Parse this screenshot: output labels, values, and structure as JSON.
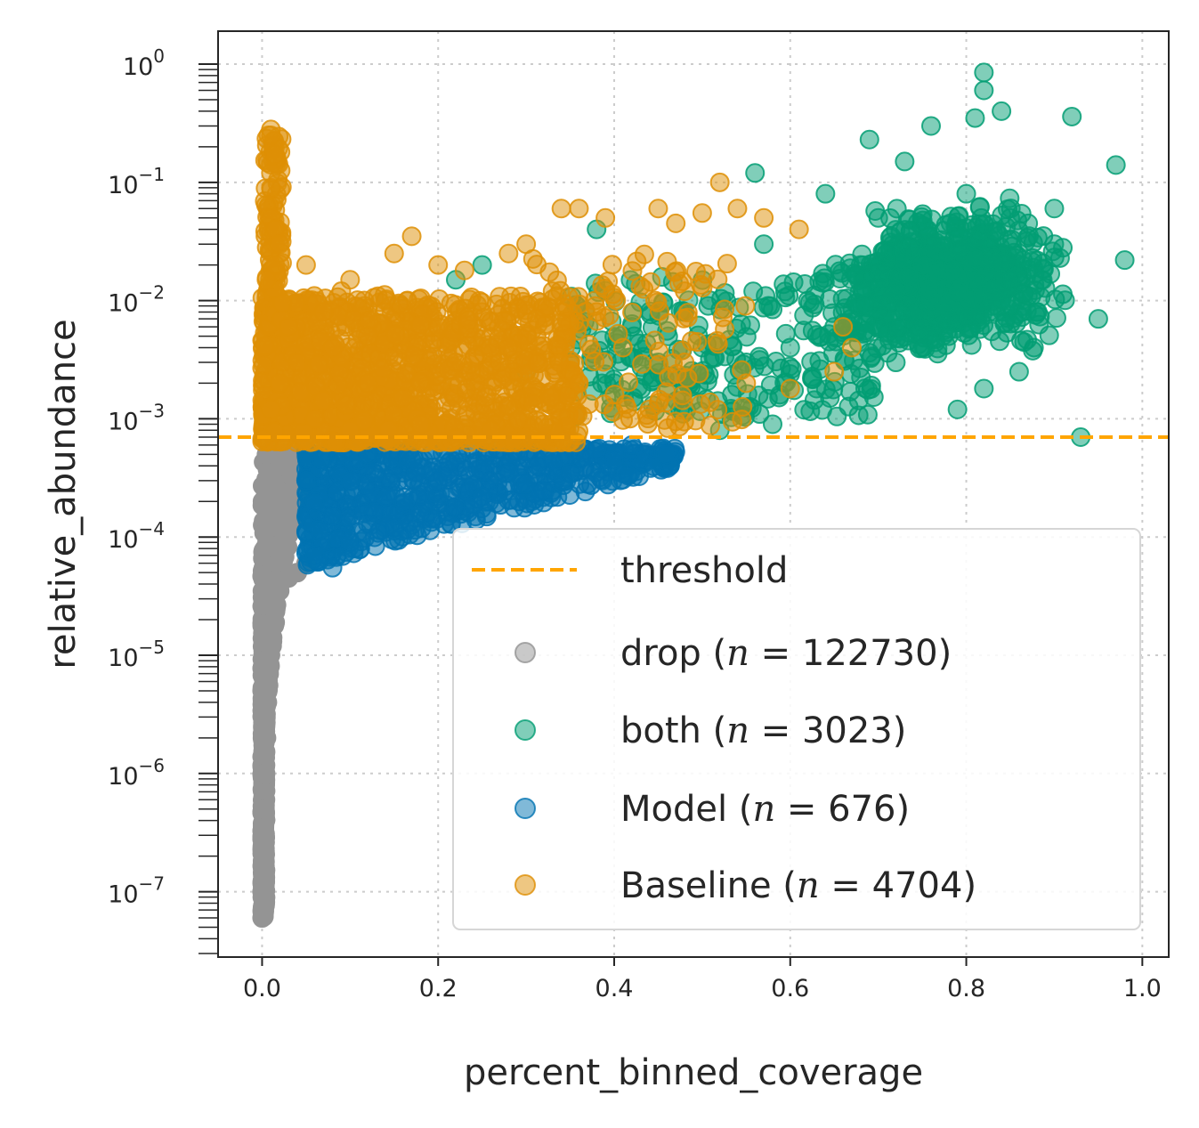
{
  "chart_data": {
    "type": "scatter",
    "title": "",
    "xlabel": "percent_binned_coverage",
    "ylabel": "relative_abundance",
    "xlim": [
      -0.05,
      1.03
    ],
    "ylim": [
      2.8e-08,
      1.9
    ],
    "yscale": "log",
    "grid": true,
    "legend_position": "lower-right",
    "x_ticks": [
      {
        "value": 0.0,
        "label": "0.0"
      },
      {
        "value": 0.2,
        "label": "0.2"
      },
      {
        "value": 0.4,
        "label": "0.4"
      },
      {
        "value": 0.6,
        "label": "0.6"
      },
      {
        "value": 0.8,
        "label": "0.8"
      },
      {
        "value": 1.0,
        "label": "1.0"
      }
    ],
    "y_ticks": [
      {
        "exp": 0,
        "base": "10",
        "sup": "0"
      },
      {
        "exp": -1,
        "base": "10",
        "sup": "−1"
      },
      {
        "exp": -2,
        "base": "10",
        "sup": "−2"
      },
      {
        "exp": -3,
        "base": "10",
        "sup": "−3"
      },
      {
        "exp": -4,
        "base": "10",
        "sup": "−4"
      },
      {
        "exp": -5,
        "base": "10",
        "sup": "−5"
      },
      {
        "exp": -6,
        "base": "10",
        "sup": "−6"
      },
      {
        "exp": -7,
        "base": "10",
        "sup": "−7"
      }
    ],
    "threshold": {
      "label": "threshold",
      "value": 0.0007,
      "color": "#ffa500"
    },
    "series": [
      {
        "name": "drop",
        "n_text": "122730",
        "color": "#949494",
        "alpha": 1.0,
        "points": [
          [
            0.0,
            6e-08
          ],
          [
            0.0,
            1e-07
          ],
          [
            0.002,
            2e-07
          ],
          [
            0.003,
            5e-07
          ],
          [
            0.004,
            1e-06
          ],
          [
            0.005,
            2e-06
          ],
          [
            0.006,
            4e-06
          ],
          [
            0.008,
            8e-06
          ],
          [
            0.01,
            1.5e-05
          ],
          [
            0.014,
            2.5e-05
          ],
          [
            0.02,
            3.5e-05
          ],
          [
            0.03,
            4.5e-05
          ],
          [
            0.05,
            6e-05
          ],
          [
            0.005,
            0.0002
          ],
          [
            0.005,
            0.0005
          ],
          [
            0.01,
            0.0003
          ],
          [
            0.003,
            8e-05
          ],
          [
            0.04,
            5e-05
          ]
        ]
      },
      {
        "name": "both",
        "n_text": "3023",
        "color": "#029e73",
        "alpha": 0.5,
        "points": [
          [
            0.82,
            0.85
          ],
          [
            0.82,
            0.6
          ],
          [
            0.69,
            0.23
          ],
          [
            0.81,
            0.35
          ],
          [
            0.97,
            0.14
          ],
          [
            0.92,
            0.36
          ],
          [
            0.73,
            0.15
          ],
          [
            0.8,
            0.08
          ],
          [
            0.85,
            0.05
          ],
          [
            0.9,
            0.06
          ],
          [
            0.98,
            0.022
          ],
          [
            0.75,
            0.02
          ],
          [
            0.85,
            0.015
          ],
          [
            0.7,
            0.01
          ],
          [
            0.78,
            0.005
          ],
          [
            0.88,
            0.008
          ],
          [
            0.65,
            0.006
          ],
          [
            0.72,
            0.003
          ],
          [
            0.95,
            0.007
          ],
          [
            0.6,
            0.004
          ],
          [
            0.55,
            0.003
          ],
          [
            0.5,
            0.004
          ],
          [
            0.45,
            0.003
          ],
          [
            0.4,
            0.002
          ],
          [
            0.35,
            0.003
          ],
          [
            0.3,
            0.0025
          ],
          [
            0.25,
            0.02
          ],
          [
            0.22,
            0.015
          ],
          [
            0.52,
            0.0008
          ],
          [
            0.58,
            0.0009
          ],
          [
            0.63,
            0.0018
          ],
          [
            0.68,
            0.02
          ],
          [
            0.93,
            0.0007
          ],
          [
            0.86,
            0.0025
          ],
          [
            0.79,
            0.0012
          ],
          [
            0.64,
            0.08
          ],
          [
            0.56,
            0.12
          ],
          [
            0.76,
            0.3
          ],
          [
            0.82,
            0.0018
          ],
          [
            0.9,
            0.03
          ],
          [
            0.7,
            0.05
          ],
          [
            0.57,
            0.03
          ],
          [
            0.62,
            0.01
          ],
          [
            0.48,
            0.008
          ],
          [
            0.42,
            0.006
          ],
          [
            0.38,
            0.04
          ],
          [
            0.84,
            0.4
          ]
        ]
      },
      {
        "name": "Model",
        "n_text": "676",
        "color": "#0173b2",
        "alpha": 0.5,
        "points": [
          [
            0.06,
            7e-05
          ],
          [
            0.08,
            5.5e-05
          ],
          [
            0.1,
            9e-05
          ],
          [
            0.12,
            0.00013
          ],
          [
            0.15,
            0.00012
          ],
          [
            0.18,
            0.00016
          ],
          [
            0.22,
            0.00018
          ],
          [
            0.25,
            0.00022
          ],
          [
            0.3,
            0.00028
          ],
          [
            0.35,
            0.00035
          ],
          [
            0.4,
            0.00045
          ],
          [
            0.46,
            0.0005
          ],
          [
            0.42,
            0.0006
          ],
          [
            0.2,
            0.0003
          ],
          [
            0.1,
            0.0003
          ],
          [
            0.06,
            0.0002
          ],
          [
            0.05,
            0.0003
          ],
          [
            0.08,
            0.00015
          ],
          [
            0.14,
            0.00022
          ],
          [
            0.28,
            0.00035
          ],
          [
            0.33,
            0.00045
          ],
          [
            0.17,
            0.00045
          ],
          [
            0.12,
            0.0005
          ],
          [
            0.24,
            0.00055
          ],
          [
            0.38,
            0.00055
          ]
        ]
      },
      {
        "name": "Baseline",
        "n_text": "4704",
        "color": "#de8f05",
        "alpha": 0.5,
        "points": [
          [
            0.01,
            0.28
          ],
          [
            0.01,
            0.25
          ],
          [
            0.01,
            0.12
          ],
          [
            0.01,
            0.09
          ],
          [
            0.01,
            0.05
          ],
          [
            0.015,
            0.04
          ],
          [
            0.02,
            0.03
          ],
          [
            0.015,
            0.02
          ],
          [
            0.005,
            0.015
          ],
          [
            0.05,
            0.02
          ],
          [
            0.1,
            0.015
          ],
          [
            0.15,
            0.025
          ],
          [
            0.17,
            0.035
          ],
          [
            0.2,
            0.02
          ],
          [
            0.23,
            0.018
          ],
          [
            0.28,
            0.025
          ],
          [
            0.3,
            0.03
          ],
          [
            0.34,
            0.06
          ],
          [
            0.36,
            0.06
          ],
          [
            0.39,
            0.05
          ],
          [
            0.45,
            0.06
          ],
          [
            0.47,
            0.045
          ],
          [
            0.5,
            0.055
          ],
          [
            0.52,
            0.1
          ],
          [
            0.54,
            0.06
          ],
          [
            0.57,
            0.05
          ],
          [
            0.61,
            0.04
          ],
          [
            0.66,
            0.006
          ],
          [
            0.67,
            0.004
          ],
          [
            0.65,
            0.0025
          ],
          [
            0.6,
            0.0018
          ],
          [
            0.55,
            0.002
          ],
          [
            0.48,
            0.003
          ],
          [
            0.41,
            0.004
          ],
          [
            0.38,
            0.008
          ],
          [
            0.33,
            0.012
          ],
          [
            0.25,
            0.008
          ],
          [
            0.2,
            0.006
          ],
          [
            0.12,
            0.005
          ],
          [
            0.08,
            0.004
          ],
          [
            0.04,
            0.003
          ],
          [
            0.02,
            0.002
          ],
          [
            0.01,
            0.0012
          ],
          [
            0.06,
            0.001
          ],
          [
            0.1,
            0.0008
          ],
          [
            0.18,
            0.0009
          ],
          [
            0.26,
            0.0008
          ],
          [
            0.32,
            0.0009
          ],
          [
            0.12,
            0.002
          ],
          [
            0.16,
            0.0015
          ],
          [
            0.22,
            0.003
          ],
          [
            0.28,
            0.004
          ],
          [
            0.36,
            0.002
          ],
          [
            0.44,
            0.0012
          ],
          [
            0.07,
            0.008
          ],
          [
            0.03,
            0.006
          ],
          [
            0.09,
            0.012
          ],
          [
            0.14,
            0.01
          ],
          [
            0.27,
            0.003
          ]
        ]
      }
    ]
  }
}
